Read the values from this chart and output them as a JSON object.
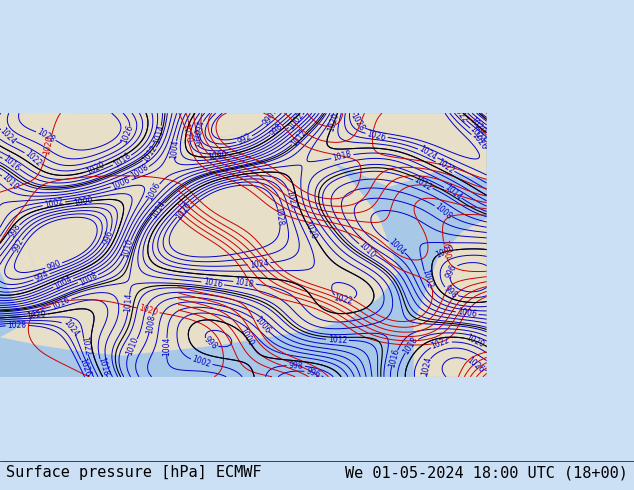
{
  "left_label": "Surface pressure [hPa] ECMWF",
  "right_label": "We 01-05-2024 18:00 UTC (18+00)",
  "bg_color": "#cce0f5",
  "map_bg_land": "#e8dfc8",
  "map_bg_water": "#a8c8e8",
  "contour_color_blue": "#0000cc",
  "contour_color_red": "#cc0000",
  "contour_color_black": "#000000",
  "label_fontsize": 11,
  "label_color": "#000000",
  "fig_width": 6.34,
  "fig_height": 4.9,
  "dpi": 100
}
